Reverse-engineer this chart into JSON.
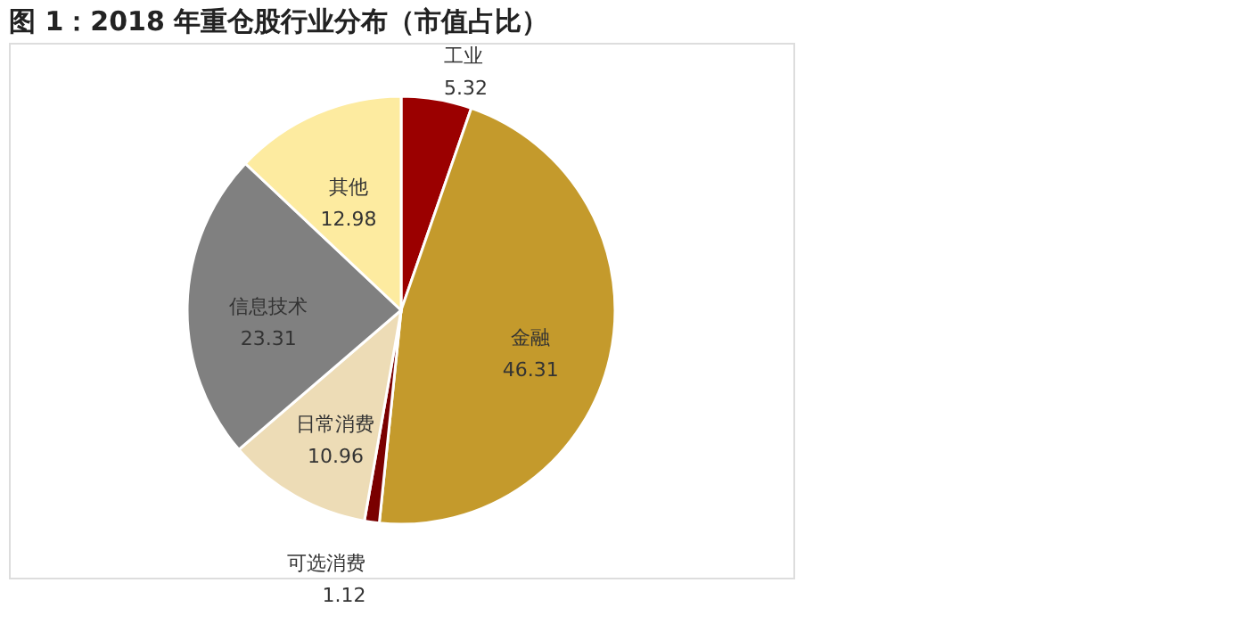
{
  "chart_data": {
    "type": "pie",
    "title": "图 1：2018 年重仓股行业分布（市值占比）",
    "categories": [
      "工业",
      "金融",
      "可选消费",
      "日常消费",
      "信息技术",
      "其他"
    ],
    "values": [
      5.32,
      46.31,
      1.12,
      10.96,
      23.31,
      12.98
    ],
    "colors": [
      "#9b0000",
      "#c49a2c",
      "#7a0000",
      "#eddcb6",
      "#808080",
      "#fdeba0"
    ],
    "data_labels": true,
    "legend": false
  }
}
